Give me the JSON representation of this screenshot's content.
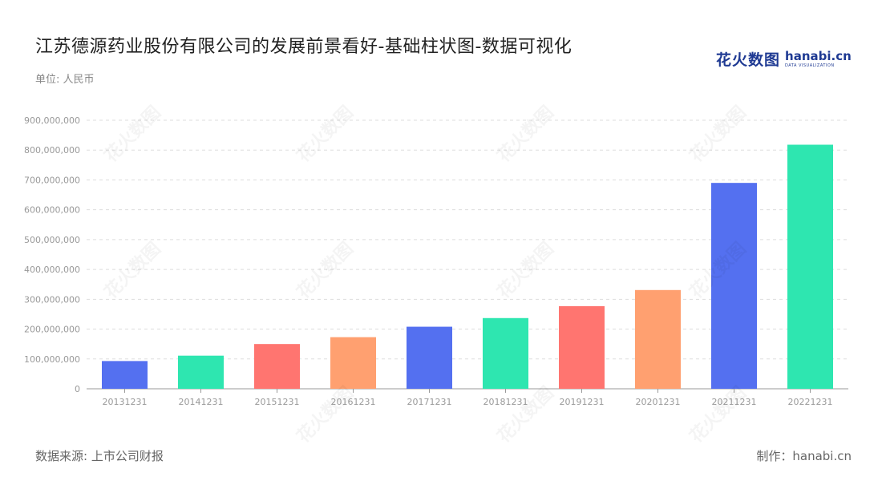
{
  "header": {
    "title": "江苏德源药业股份有限公司的发展前景看好-基础柱状图-数据可视化",
    "unit": "单位: 人民币"
  },
  "logo": {
    "cn": "花火数图",
    "en_main": "hanabi.cn",
    "en_sub": "DATA VISUALIZATION"
  },
  "footer": {
    "source": "数据来源: 上市公司财报",
    "maker": "制作：hanabi.cn"
  },
  "watermark_text": "花火数图",
  "colors": {
    "palette": [
      "#5470f0",
      "#2ee6b0",
      "#ff7570",
      "#ffa070"
    ],
    "grid": "#dddddd",
    "axis": "#999999",
    "tick_label": "#999999"
  },
  "chart_data": {
    "type": "bar",
    "categories": [
      "20131231",
      "20141231",
      "20151231",
      "20161231",
      "20171231",
      "20181231",
      "20191231",
      "20201231",
      "20211231",
      "20221231"
    ],
    "values": [
      93000000,
      111000000,
      150000000,
      173000000,
      208000000,
      237000000,
      277000000,
      331000000,
      690000000,
      818000000
    ],
    "ylim": [
      0,
      900000000
    ],
    "y_ticks": [
      0,
      100000000,
      200000000,
      300000000,
      400000000,
      500000000,
      600000000,
      700000000,
      800000000,
      900000000
    ],
    "y_tick_labels": [
      "0",
      "100,000,000",
      "200,000,000",
      "300,000,000",
      "400,000,000",
      "500,000,000",
      "600,000,000",
      "700,000,000",
      "800,000,000",
      "900,000,000"
    ],
    "grid": true,
    "title": "",
    "xlabel": "",
    "ylabel": ""
  }
}
